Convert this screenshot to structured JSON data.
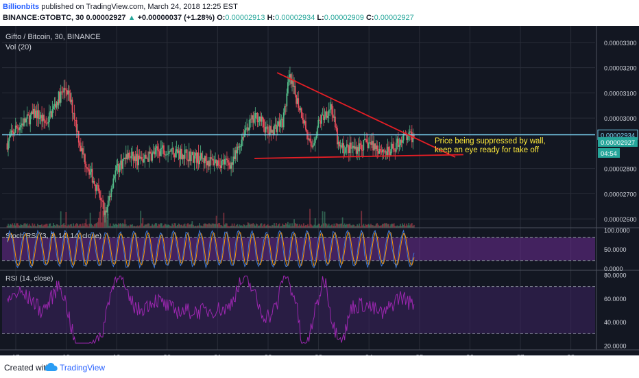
{
  "header": {
    "author": "Billionbits",
    "published": "published on TradingView.com, March 24, 2018 12:25 EST",
    "symbol": "BINANCE:GTOBTC, 30",
    "last": "0.00002927",
    "change_arrow": "▲",
    "change": "+0.00000037 (+1.28%)",
    "o_label": "O:",
    "o": "0.00002913",
    "h_label": "H:",
    "h": "0.00002934",
    "l_label": "L:",
    "l": "0.00002909",
    "c_label": "C:",
    "c": "0.00002927"
  },
  "footer": {
    "created": "Created with",
    "brand": "TradingView"
  },
  "colors": {
    "background": "#131722",
    "grid": "#2a2e39",
    "text": "#d1d4dc",
    "up": "#53b987",
    "down": "#eb4d5c",
    "trendline": "#e51e25",
    "resistance": "#7ad0ef",
    "annotation": "#ffeb3b",
    "stoch_k": "#3c78d8",
    "stoch_d": "#ff9800",
    "stoch_band": "#6b2c91",
    "rsi_line": "#9c27b0",
    "rsi_band": "#3d2361",
    "current_price_bg": "#26a69a"
  },
  "chart_data": {
    "type": "candlestick",
    "legend": "Gifto / Bitcoin, 30, BINANCE",
    "volume_label": "Vol (20)",
    "x_ticks": [
      "17",
      "18",
      "19",
      "20",
      "21",
      "22",
      "23",
      "24",
      "25",
      "26",
      "27",
      "28"
    ],
    "price_ticks": [
      "0.00003300",
      "0.00003200",
      "0.00003100",
      "0.00003000",
      "0.00002800",
      "0.00002700",
      "0.00002600"
    ],
    "price_range": [
      2.565e-05,
      3.365e-05
    ],
    "horizontal_line_label": "0.00002934",
    "current_price_label": "0.00002927",
    "countdown_label": "04:54",
    "annotation": [
      "Price being suppressed by wall,",
      "keep an eye ready for take off"
    ],
    "anchors": [
      {
        "day": 16.83,
        "price": 2.9e-05
      },
      {
        "day": 17.0,
        "price": 2.96e-05
      },
      {
        "day": 17.4,
        "price": 3.02e-05
      },
      {
        "day": 17.6,
        "price": 2.98e-05
      },
      {
        "day": 17.85,
        "price": 3.08e-05
      },
      {
        "day": 18.0,
        "price": 3.12e-05
      },
      {
        "day": 18.15,
        "price": 3.02e-05
      },
      {
        "day": 18.3,
        "price": 2.87e-05
      },
      {
        "day": 18.55,
        "price": 2.75e-05
      },
      {
        "day": 18.78,
        "price": 2.62e-05
      },
      {
        "day": 18.95,
        "price": 2.78e-05
      },
      {
        "day": 19.2,
        "price": 2.85e-05
      },
      {
        "day": 19.5,
        "price": 2.83e-05
      },
      {
        "day": 19.9,
        "price": 2.88e-05
      },
      {
        "day": 20.3,
        "price": 2.86e-05
      },
      {
        "day": 20.8,
        "price": 2.83e-05
      },
      {
        "day": 21.3,
        "price": 2.82e-05
      },
      {
        "day": 21.55,
        "price": 2.96e-05
      },
      {
        "day": 21.8,
        "price": 3.01e-05
      },
      {
        "day": 22.0,
        "price": 2.94e-05
      },
      {
        "day": 22.3,
        "price": 2.99e-05
      },
      {
        "day": 22.42,
        "price": 3.16e-05
      },
      {
        "day": 22.7,
        "price": 3e-05
      },
      {
        "day": 22.85,
        "price": 2.87e-05
      },
      {
        "day": 23.0,
        "price": 2.98e-05
      },
      {
        "day": 23.25,
        "price": 3.05e-05
      },
      {
        "day": 23.4,
        "price": 2.88e-05
      },
      {
        "day": 23.7,
        "price": 2.88e-05
      },
      {
        "day": 24.0,
        "price": 2.9e-05
      },
      {
        "day": 24.4,
        "price": 2.86e-05
      },
      {
        "day": 24.65,
        "price": 2.92e-05
      },
      {
        "day": 24.9,
        "price": 2.927e-05
      }
    ],
    "trendlines": [
      {
        "name": "descending",
        "from": {
          "day": 22.18,
          "price": 3.18e-05
        },
        "to": {
          "day": 25.71,
          "price": 2.845e-05
        }
      },
      {
        "name": "support",
        "from": {
          "day": 21.73,
          "price": 2.84e-05
        },
        "to": {
          "day": 25.87,
          "price": 2.855e-05
        }
      }
    ],
    "horizontal_line": 2.934e-05,
    "indicators": [
      {
        "name": "Stoch RSI (3, 3, 14, 14, close)",
        "ticks": [
          "100.0000",
          "50.0000",
          "0.0000"
        ],
        "range": [
          0,
          100
        ],
        "band": [
          20,
          80
        ],
        "last": 40
      },
      {
        "name": "RSI (14, close)",
        "ticks": [
          "80.0000",
          "60.0000",
          "40.0000",
          "20.0000"
        ],
        "range": [
          18,
          82
        ],
        "band": [
          30,
          70
        ],
        "last": 55
      }
    ]
  }
}
